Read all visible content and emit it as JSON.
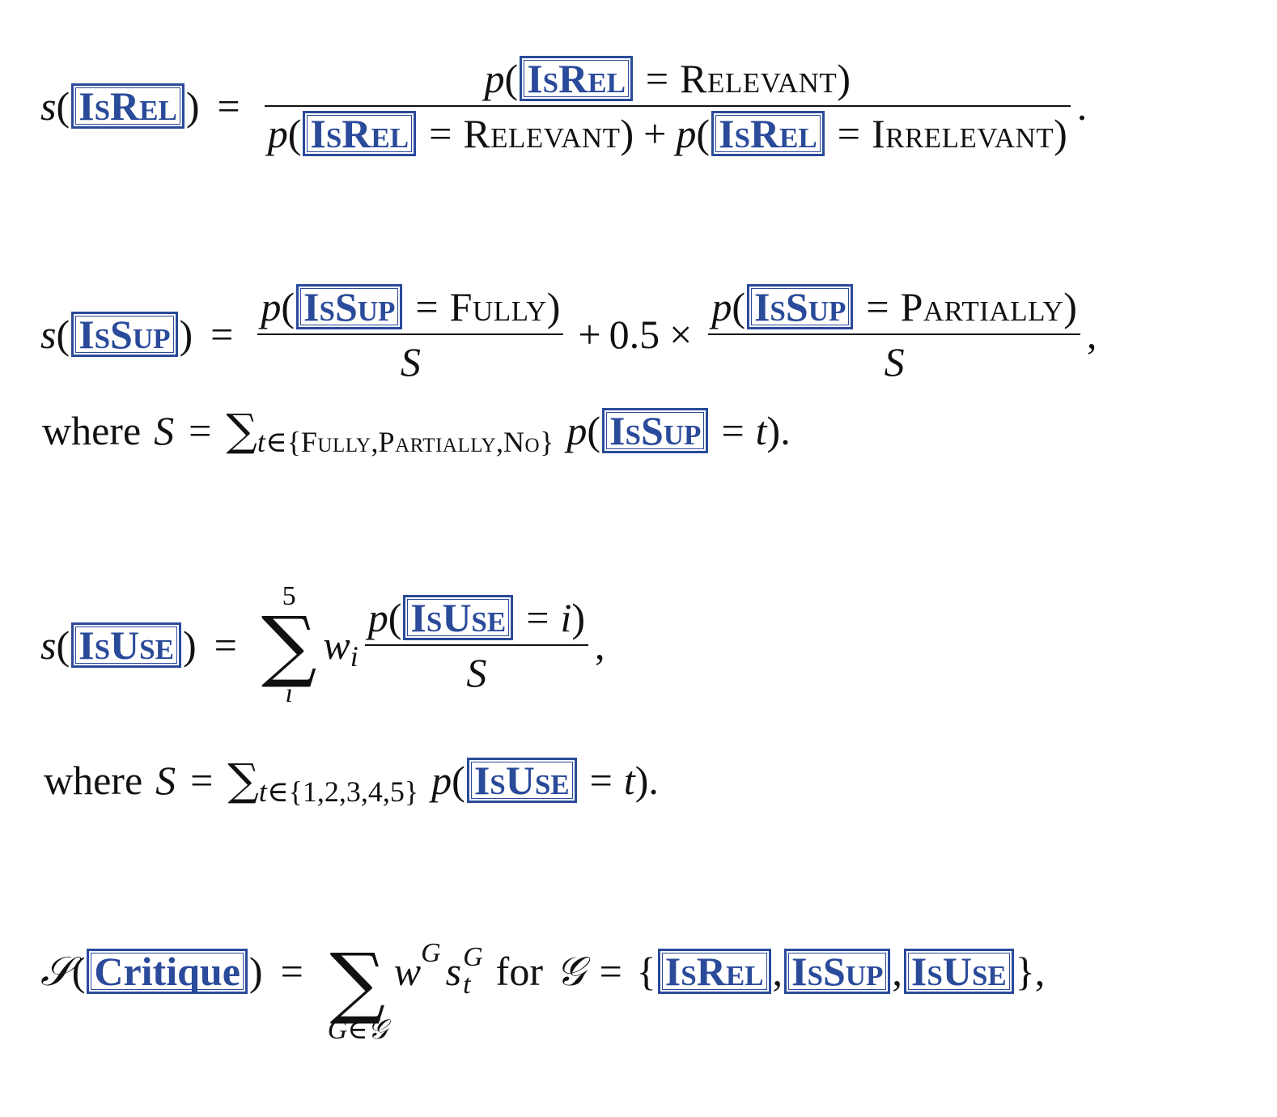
{
  "tokens": {
    "isrel": "IsRel",
    "issup": "IsSup",
    "isuse": "IsUse",
    "critique": "Critique"
  },
  "values": {
    "relevant": "Relevant",
    "irrelevant": "Irrelevant",
    "fully": "Fully",
    "partially": "Partially",
    "no": "No",
    "half": "0.5",
    "set_1_5": "{1,2,3,4,5}",
    "upper5": "5"
  },
  "words": {
    "where": "where",
    "for": "for"
  },
  "symbols": {
    "s": "s",
    "S": "S",
    "calS": "𝒮",
    "calG": "𝒢",
    "p": "p",
    "w": "w",
    "t": "t",
    "i": "i",
    "G": "G"
  }
}
